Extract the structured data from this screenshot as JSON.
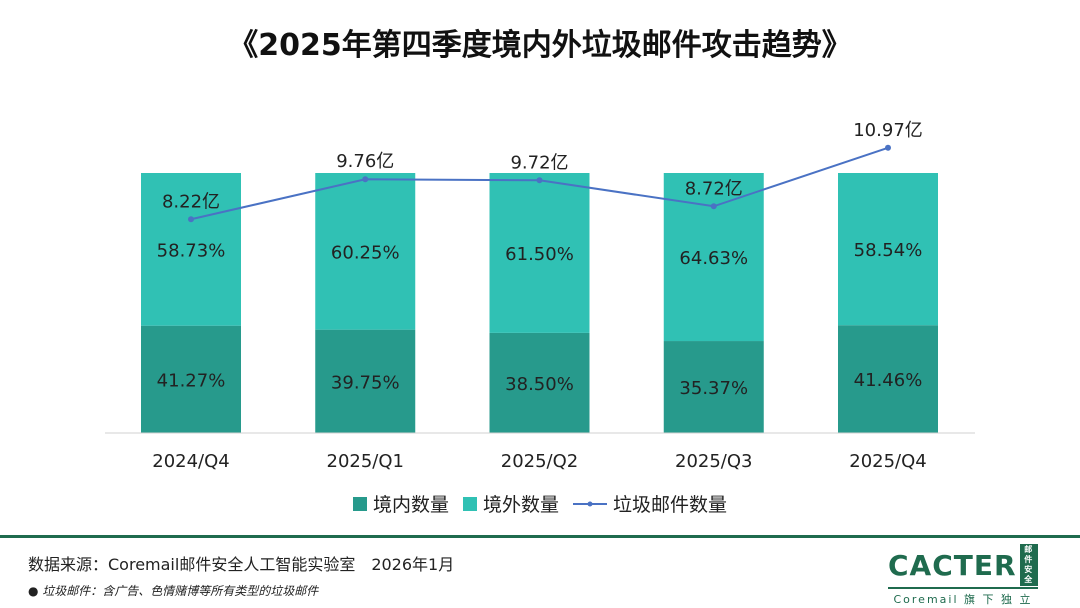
{
  "title": "《2025年第四季度境内外垃圾邮件攻击趋势》",
  "chart_data": {
    "type": "bar",
    "stacked": true,
    "categories": [
      "2024/Q4",
      "2025/Q1",
      "2025/Q2",
      "2025/Q3",
      "2025/Q4"
    ],
    "series": [
      {
        "name": "境内数量",
        "type": "bar",
        "color": "#279a8c",
        "values": [
          41.27,
          39.75,
          38.5,
          35.37,
          41.46
        ],
        "labels": [
          "41.27%",
          "39.75%",
          "38.50%",
          "35.37%",
          "41.46%"
        ]
      },
      {
        "name": "境外数量",
        "type": "bar",
        "color": "#30c1b4",
        "values": [
          58.73,
          60.25,
          61.5,
          64.63,
          58.54
        ],
        "labels": [
          "58.73%",
          "60.25%",
          "61.50%",
          "64.63%",
          "58.54%"
        ]
      },
      {
        "name": "垃圾邮件数量",
        "type": "line",
        "color": "#4a72c4",
        "values": [
          8.22,
          9.76,
          9.72,
          8.72,
          10.97
        ],
        "labels": [
          "8.22亿",
          "9.76亿",
          "9.72亿",
          "8.72亿",
          "10.97亿"
        ]
      }
    ],
    "ylim": [
      0,
      100
    ],
    "y2lim": [
      0,
      10
    ],
    "legend": "bottom",
    "grid": false
  },
  "footer": {
    "source": "数据来源：Coremail邮件安全人工智能实验室　2026年1月",
    "note": "● 垃圾邮件：含广告、色情赌博等所有类型的垃圾邮件"
  },
  "logo": {
    "name": "CACTER",
    "badge": "邮件安全",
    "tagline": "Coremail 旗 下 独 立 品 牌"
  }
}
